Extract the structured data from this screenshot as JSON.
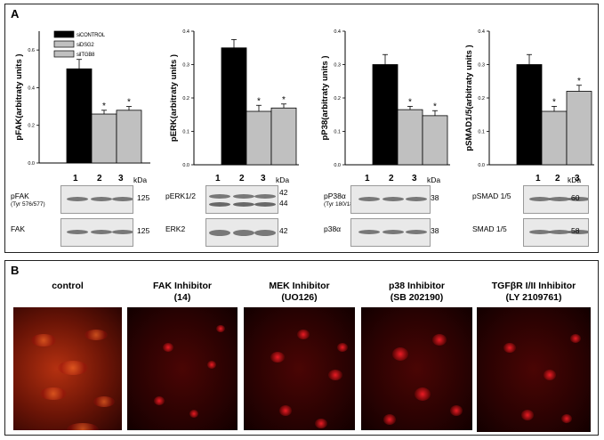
{
  "panel_a_label": "A",
  "panel_b_label": "B",
  "legend": [
    "siCONTROL",
    "siDSG2",
    "siITGB8"
  ],
  "colors": {
    "control": "#000000",
    "sidsg2": "#c0c0c0",
    "siitgb8": "#c0c0c0"
  },
  "chart_data": [
    {
      "type": "bar",
      "ylabel": "pFAK(arbitraty units )",
      "ylim": [
        0,
        0.7
      ],
      "yticks": [
        "0.0",
        "0.2",
        "0.4",
        "0.6"
      ],
      "ytick_values": [
        0.0,
        0.2,
        0.4,
        0.6
      ],
      "categories": [
        "siCONTROL",
        "siDSG2",
        "siITGB8"
      ],
      "values": [
        0.5,
        0.26,
        0.28
      ],
      "errors": [
        0.05,
        0.02,
        0.02
      ],
      "significance": [
        "",
        "*",
        "*"
      ]
    },
    {
      "type": "bar",
      "ylabel": "pERK(arbitraty units )",
      "ylim": [
        0,
        0.4
      ],
      "yticks": [
        "0.0",
        "0.1",
        "0.2",
        "0.3",
        "0.4"
      ],
      "ytick_values": [
        0.0,
        0.1,
        0.2,
        0.3,
        0.4
      ],
      "categories": [
        "siCONTROL",
        "siDSG2",
        "siITGB8"
      ],
      "values": [
        0.35,
        0.16,
        0.17
      ],
      "errors": [
        0.025,
        0.018,
        0.012
      ],
      "significance": [
        "",
        "*",
        "*"
      ]
    },
    {
      "type": "bar",
      "ylabel": "pP38(arbitraty units )",
      "ylim": [
        0,
        0.4
      ],
      "yticks": [
        "0.0",
        "0.1",
        "0.2",
        "0.3",
        "0.4"
      ],
      "ytick_values": [
        0.0,
        0.1,
        0.2,
        0.3,
        0.4
      ],
      "categories": [
        "siCONTROL",
        "siDSG2",
        "siITGB8"
      ],
      "values": [
        0.3,
        0.165,
        0.147
      ],
      "errors": [
        0.03,
        0.01,
        0.015
      ],
      "significance": [
        "",
        "*",
        "*"
      ]
    },
    {
      "type": "bar",
      "ylabel": "pSMAD1/5(arbitraty units )",
      "ylim": [
        0,
        0.4
      ],
      "yticks": [
        "0.0",
        "0.1",
        "0.2",
        "0.3",
        "0.4"
      ],
      "ytick_values": [
        0.0,
        0.1,
        0.2,
        0.3,
        0.4
      ],
      "categories": [
        "siCONTROL",
        "siDSG2",
        "siITGB8"
      ],
      "values": [
        0.3,
        0.16,
        0.22
      ],
      "errors": [
        0.03,
        0.015,
        0.018
      ],
      "significance": [
        "",
        "*",
        "*"
      ]
    }
  ],
  "blots": [
    {
      "lanes": [
        "1",
        "2",
        "3"
      ],
      "kda_title": "kDa",
      "rows": [
        {
          "label": "pFAK",
          "sublabel": "(Tyr 576/577)",
          "kda": [
            "125"
          ]
        },
        {
          "label": "FAK",
          "sublabel": "",
          "kda": [
            "125"
          ]
        }
      ]
    },
    {
      "lanes": [
        "1",
        "2",
        "3"
      ],
      "kda_title": "kDa",
      "rows": [
        {
          "label": "pERK1/2",
          "sublabel": "",
          "kda": [
            "42",
            "44"
          ]
        },
        {
          "label": "ERK2",
          "sublabel": "",
          "kda": [
            "42"
          ]
        }
      ]
    },
    {
      "lanes": [
        "1",
        "2",
        "3"
      ],
      "kda_title": "kDa",
      "rows": [
        {
          "label": "pP38α",
          "sublabel": "(Tyr 180/182)",
          "kda": [
            "38"
          ]
        },
        {
          "label": "p38α",
          "sublabel": "",
          "kda": [
            "38"
          ]
        }
      ]
    },
    {
      "lanes": [
        "1",
        "2",
        "3"
      ],
      "kda_title": "kDa",
      "rows": [
        {
          "label": "pSMAD 1/5",
          "sublabel": "",
          "kda": [
            "60"
          ]
        },
        {
          "label": "SMAD 1/5",
          "sublabel": "",
          "kda": [
            "58"
          ]
        }
      ]
    }
  ],
  "microscopy": [
    {
      "title_line1": "control",
      "title_line2": ""
    },
    {
      "title_line1": "FAK Inhibitor",
      "title_line2": "(14)"
    },
    {
      "title_line1": "MEK Inhibitor",
      "title_line2": "(UO126)"
    },
    {
      "title_line1": "p38 Inhibitor",
      "title_line2": "(SB 202190)"
    },
    {
      "title_line1": "TGFβR I/II Inhibitor",
      "title_line2": "(LY 2109761)"
    }
  ]
}
